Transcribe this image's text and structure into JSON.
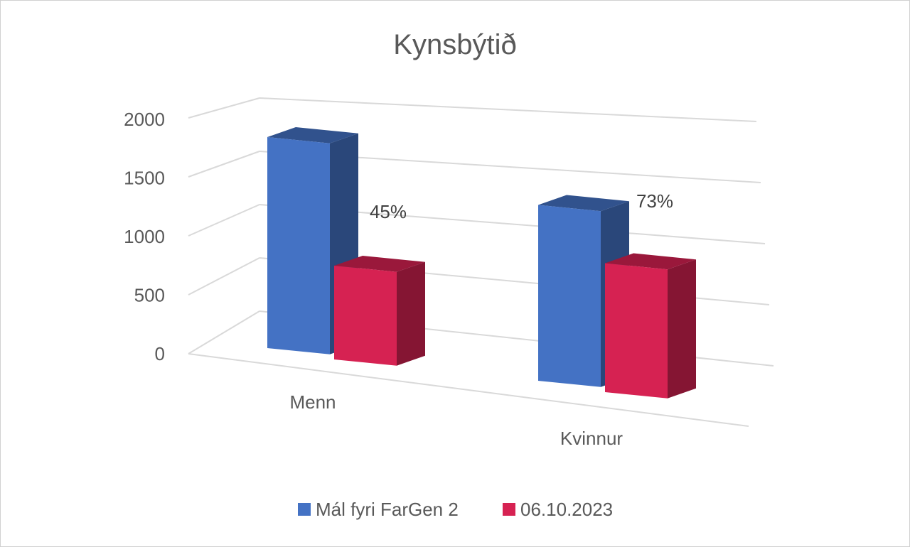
{
  "chart_data": {
    "type": "bar",
    "title": "Kynsbýtið",
    "categories": [
      "Menn",
      "Kvinnur"
    ],
    "series": [
      {
        "name": "Mál fyri FarGen 2",
        "values": [
          1800,
          1500
        ],
        "color": "#4472C4"
      },
      {
        "name": "06.10.2023",
        "values": [
          800,
          1100
        ],
        "color": "#D62252"
      }
    ],
    "data_labels": [
      "45%",
      "73%"
    ],
    "yticks": [
      "0",
      "500",
      "1000",
      "1500",
      "2000"
    ],
    "ylim": [
      0,
      2000
    ],
    "xlabel": "",
    "ylabel": "",
    "grid": true,
    "legend_position": "bottom",
    "style": "3d-clustered-column"
  }
}
